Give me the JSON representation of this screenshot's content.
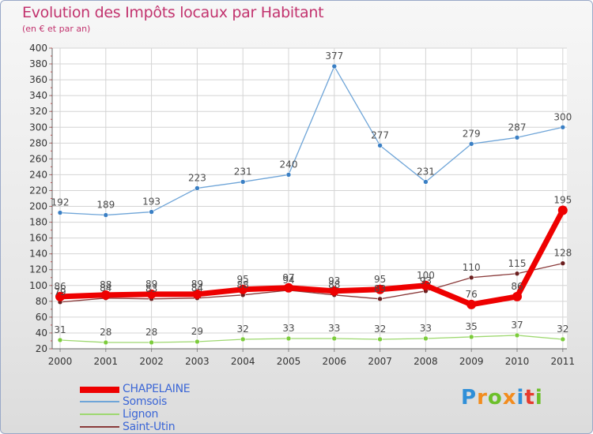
{
  "chart_data": {
    "type": "line",
    "title": "Evolution des Impôts locaux par Habitant",
    "subtitle": "(en € et par an)",
    "xlabel": "",
    "ylabel": "",
    "categories": [
      "2000",
      "2001",
      "2002",
      "2003",
      "2004",
      "2005",
      "2006",
      "2007",
      "2008",
      "2009",
      "2010",
      "2011"
    ],
    "ylim": [
      20,
      400
    ],
    "yticks": [
      20,
      40,
      60,
      80,
      100,
      120,
      140,
      160,
      180,
      200,
      220,
      240,
      260,
      280,
      300,
      320,
      340,
      360,
      380,
      400
    ],
    "grid": true,
    "legend_position": "bottom-left",
    "series": [
      {
        "name": "Somsois",
        "color": "#6fa5d8",
        "marker": "#3a7fc4",
        "values": [
          192,
          189,
          193,
          223,
          231,
          240,
          377,
          277,
          231,
          279,
          287,
          300
        ],
        "labels": true
      },
      {
        "name": "Lignon",
        "color": "#9ed870",
        "marker": "#7ccc3c",
        "values": [
          31,
          28,
          28,
          29,
          32,
          33,
          33,
          32,
          33,
          35,
          37,
          32
        ],
        "labels": true
      },
      {
        "name": "Saint-Utin",
        "color": "#8a3a3a",
        "marker": "#6b1f1f",
        "values": [
          79,
          84,
          83,
          84,
          88,
          94,
          88,
          83,
          93,
          110,
          115,
          128
        ],
        "labels": true
      },
      {
        "name": "CHAPELAINE",
        "color": "#ee0000",
        "marker": "#ee0000",
        "values": [
          86,
          88,
          89,
          89,
          95,
          97,
          93,
          95,
          100,
          76,
          86,
          195
        ],
        "labels": true
      }
    ]
  },
  "legend": {
    "items": [
      {
        "label": "CHAPELAINE",
        "color": "#ee0000"
      },
      {
        "label": "Somsois",
        "color": "#6fa5d8"
      },
      {
        "label": "Lignon",
        "color": "#9ed870"
      },
      {
        "label": "Saint-Utin",
        "color": "#8a3a3a"
      }
    ]
  },
  "logo": {
    "letters": [
      "P",
      "r",
      "o",
      "x",
      "i",
      "t",
      "i"
    ],
    "colors": [
      "#2f8fd8",
      "#f28c1e",
      "#6cbf2a",
      "#f28c1e",
      "#2f8fd8",
      "#e63b2e",
      "#6cbf2a"
    ]
  }
}
